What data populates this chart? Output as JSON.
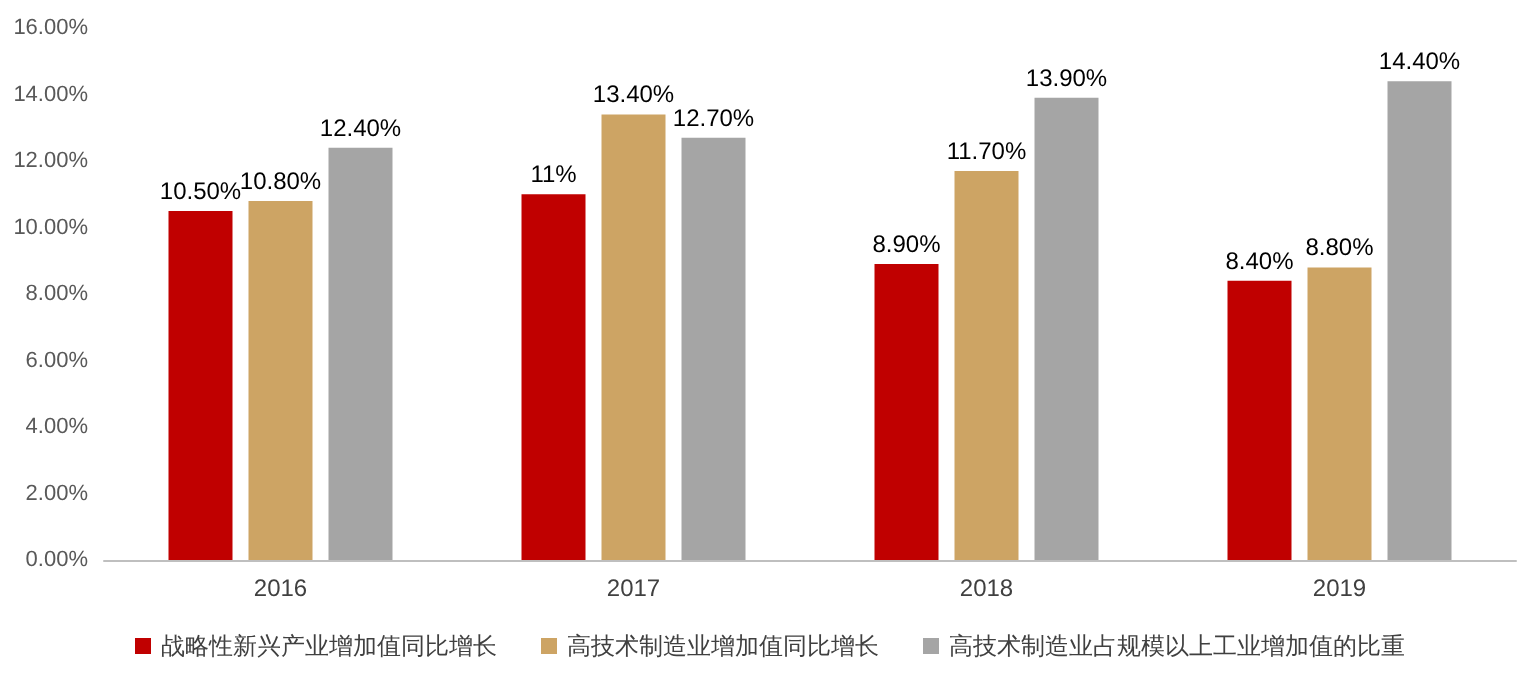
{
  "chart_data": {
    "type": "bar",
    "categories": [
      "2016",
      "2017",
      "2018",
      "2019"
    ],
    "series": [
      {
        "name": "战略性新兴产业增加值同比增长",
        "color": "#c00000",
        "values": [
          10.5,
          11,
          8.9,
          8.4
        ],
        "value_labels": [
          "10.50%",
          "11%",
          "8.90%",
          "8.40%"
        ]
      },
      {
        "name": "高技术制造业增加值同比增长",
        "color": "#cda464",
        "values": [
          10.8,
          13.4,
          11.7,
          8.8
        ],
        "value_labels": [
          "10.80%",
          "13.40%",
          "11.70%",
          "8.80%"
        ]
      },
      {
        "name": "高技术制造业占规模以上工业增加值的比重",
        "color": "#a5a5a5",
        "values": [
          12.4,
          12.7,
          13.9,
          14.4
        ],
        "value_labels": [
          "12.40%",
          "12.70%",
          "13.90%",
          "14.40%"
        ]
      }
    ],
    "ylim": [
      0,
      16
    ],
    "yticks": [
      {
        "value": 0,
        "label": "0.00%"
      },
      {
        "value": 2,
        "label": "2.00%"
      },
      {
        "value": 4,
        "label": "4.00%"
      },
      {
        "value": 6,
        "label": "6.00%"
      },
      {
        "value": 8,
        "label": "8.00%"
      },
      {
        "value": 10,
        "label": "10.00%"
      },
      {
        "value": 12,
        "label": "12.00%"
      },
      {
        "value": 14,
        "label": "14.00%"
      },
      {
        "value": 16,
        "label": "16.00%"
      }
    ],
    "grid": false,
    "legend": "bottom"
  }
}
